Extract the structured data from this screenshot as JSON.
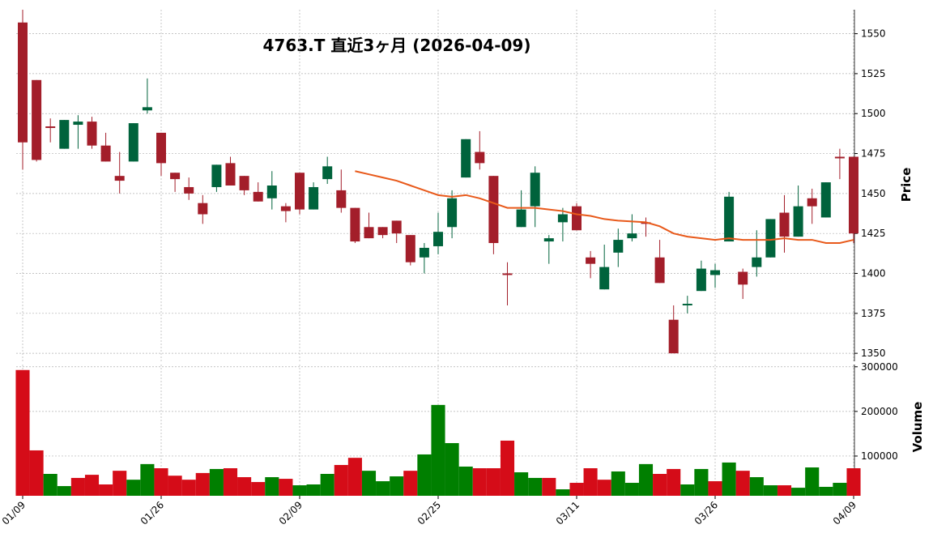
{
  "chart_data": {
    "type": "candlestick",
    "title": "4763.T 直近3ヶ月 (2026-04-09)",
    "categories": [
      "01/09",
      null,
      null,
      null,
      null,
      null,
      null,
      null,
      null,
      null,
      "01/26",
      null,
      null,
      null,
      null,
      null,
      null,
      null,
      null,
      null,
      "02/09",
      null,
      null,
      null,
      null,
      null,
      null,
      null,
      null,
      null,
      "02/25",
      null,
      null,
      null,
      null,
      null,
      null,
      null,
      null,
      null,
      "03/11",
      null,
      null,
      null,
      null,
      null,
      null,
      null,
      null,
      null,
      "03/26",
      null,
      null,
      null,
      null,
      null,
      null,
      null,
      null,
      null,
      "04/09"
    ],
    "open": [
      1557,
      1521,
      1492,
      1478,
      1493,
      1495,
      1480,
      1461,
      1470,
      1502,
      1488,
      1463,
      1454,
      1444,
      1454,
      1469,
      1461,
      1451,
      1447,
      1442,
      1463,
      1440,
      1459,
      1452,
      1441,
      1429,
      1429,
      1433,
      1424,
      1410,
      1417,
      1429,
      1460,
      1476,
      1461,
      1400,
      1429,
      1442,
      1420,
      1432,
      1442,
      1410,
      1390,
      1413,
      1422,
      1432,
      1410,
      1371,
      1380,
      1389,
      1399,
      1420,
      1401,
      1404,
      1410,
      1438,
      1423,
      1447,
      1435,
      1473,
      1473
    ],
    "high": [
      1565,
      1521,
      1497,
      1496,
      1499,
      1498,
      1488,
      1476,
      1494,
      1522,
      1488,
      1463,
      1460,
      1449,
      1468,
      1473,
      1461,
      1457,
      1464,
      1444,
      1463,
      1457,
      1473,
      1465,
      1441,
      1438,
      1429,
      1433,
      1424,
      1419,
      1438,
      1452,
      1484,
      1489,
      1461,
      1407,
      1452,
      1467,
      1424,
      1441,
      1444,
      1414,
      1418,
      1428,
      1437,
      1435,
      1421,
      1380,
      1386,
      1408,
      1406,
      1451,
      1403,
      1427,
      1434,
      1449,
      1455,
      1453,
      1457,
      1478,
      1473
    ],
    "low": [
      1465,
      1470,
      1482,
      1478,
      1478,
      1478,
      1470,
      1450,
      1470,
      1500,
      1461,
      1451,
      1446,
      1431,
      1451,
      1455,
      1449,
      1445,
      1440,
      1432,
      1437,
      1440,
      1456,
      1438,
      1419,
      1422,
      1422,
      1419,
      1405,
      1400,
      1412,
      1422,
      1460,
      1465,
      1412,
      1380,
      1429,
      1429,
      1406,
      1420,
      1427,
      1397,
      1390,
      1404,
      1420,
      1423,
      1394,
      1350,
      1375,
      1389,
      1391,
      1420,
      1384,
      1398,
      1410,
      1413,
      1423,
      1431,
      1435,
      1459,
      1419
    ],
    "close": [
      1482,
      1471,
      1491,
      1496,
      1495,
      1480,
      1470,
      1458,
      1494,
      1504,
      1469,
      1459,
      1450,
      1437,
      1468,
      1455,
      1452,
      1445,
      1455,
      1439,
      1440,
      1454,
      1467,
      1441,
      1420,
      1422,
      1424,
      1425,
      1407,
      1416,
      1426,
      1447,
      1484,
      1469,
      1419,
      1399,
      1440,
      1463,
      1422,
      1437,
      1427,
      1406,
      1404,
      1421,
      1425,
      1431,
      1394,
      1350,
      1381,
      1403,
      1402,
      1448,
      1393,
      1410,
      1434,
      1423,
      1442,
      1442,
      1457,
      1472,
      1425
    ],
    "volume": [
      292700,
      112700,
      60000,
      32700,
      51000,
      58000,
      36400,
      67000,
      47000,
      82000,
      72700,
      56000,
      47000,
      62000,
      71000,
      72700,
      52700,
      41800,
      52700,
      49000,
      34500,
      36400,
      60000,
      80000,
      96000,
      67000,
      43600,
      54500,
      67000,
      103600,
      214500,
      129000,
      76400,
      72700,
      72700,
      134500,
      63600,
      51000,
      51000,
      25500,
      40000,
      72700,
      47000,
      65500,
      40000,
      82000,
      60000,
      71000,
      36400,
      71000,
      43600,
      85500,
      67000,
      52700,
      34500,
      34500,
      29000,
      74500,
      31000,
      40000,
      72700
    ],
    "ma": {
      "color": "#e8591a",
      "values": [
        null,
        null,
        null,
        null,
        null,
        null,
        null,
        null,
        null,
        null,
        null,
        null,
        null,
        null,
        null,
        null,
        null,
        null,
        null,
        null,
        null,
        null,
        null,
        null,
        1464,
        1462,
        1460,
        1458,
        1455,
        1452,
        1449,
        1448,
        1449,
        1447,
        1444,
        1441,
        1441,
        1441,
        1440,
        1439,
        1437,
        1436,
        1434,
        1433,
        1432.5,
        1432,
        1429.5,
        1425,
        1423,
        1422,
        1421,
        1422,
        1421,
        1421,
        1421,
        1422,
        1421,
        1421,
        1419,
        1419,
        1421
      ]
    },
    "up_color": "#00633c",
    "down_color": "#a31e2a",
    "volume_up_color": "#007f00",
    "volume_down_color": "#d50c18",
    "ylim": [
      1345,
      1565
    ],
    "yticks": [
      1350,
      1375,
      1400,
      1425,
      1450,
      1475,
      1500,
      1525,
      1550
    ],
    "ylabel": "Price",
    "volume_ylim": [
      11000,
      305000
    ],
    "volume_ticks": [
      100000,
      200000,
      300000
    ],
    "volume_label": "Volume",
    "grid": true
  }
}
